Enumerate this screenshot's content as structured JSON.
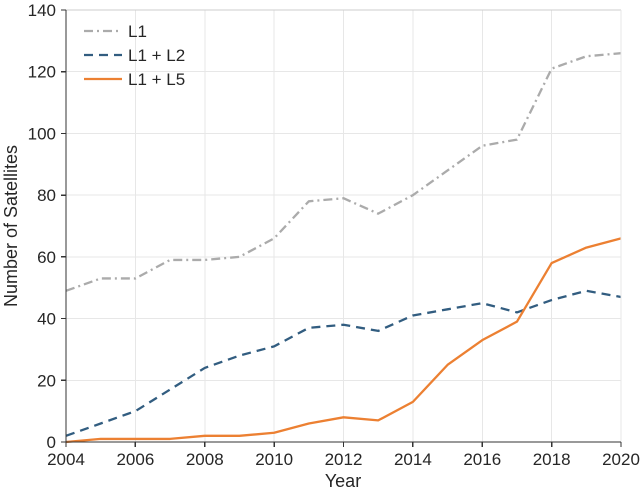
{
  "figure": {
    "background": "#ffffff",
    "text_color": "#262626",
    "axis_color": "#333333",
    "grid_color": "#e7e7e7",
    "top_spine_color": "#cccccc",
    "right_spine_color": "#e7e7e7"
  },
  "chart_data": {
    "type": "line",
    "title": "",
    "xlabel": "Year",
    "ylabel": "Number of Satellites",
    "xlim": [
      2004,
      2020
    ],
    "ylim": [
      0,
      140
    ],
    "xticks": [
      2004,
      2006,
      2008,
      2010,
      2012,
      2014,
      2016,
      2018,
      2020
    ],
    "yticks": [
      0,
      20,
      40,
      60,
      80,
      100,
      120,
      140
    ],
    "grid": true,
    "legend_position": "top-left",
    "x": [
      2004,
      2005,
      2006,
      2007,
      2008,
      2009,
      2010,
      2011,
      2012,
      2013,
      2014,
      2015,
      2016,
      2017,
      2018,
      2019,
      2020
    ],
    "series": [
      {
        "name": "L1",
        "color": "#ababab",
        "style": "dash-dot",
        "values": [
          49,
          53,
          53,
          59,
          59,
          60,
          66,
          78,
          79,
          74,
          80,
          88,
          96,
          98,
          121,
          125,
          126
        ]
      },
      {
        "name": "L1 + L2",
        "color": "#325d80",
        "style": "dashed",
        "values": [
          2,
          6,
          10,
          17,
          24,
          28,
          31,
          37,
          38,
          36,
          41,
          43,
          45,
          42,
          46,
          49,
          47
        ]
      },
      {
        "name": "L1 + L5",
        "color": "#ec8032",
        "style": "solid",
        "values": [
          0,
          1,
          1,
          1,
          2,
          2,
          3,
          6,
          8,
          7,
          13,
          25,
          33,
          39,
          58,
          63,
          66
        ]
      }
    ]
  }
}
